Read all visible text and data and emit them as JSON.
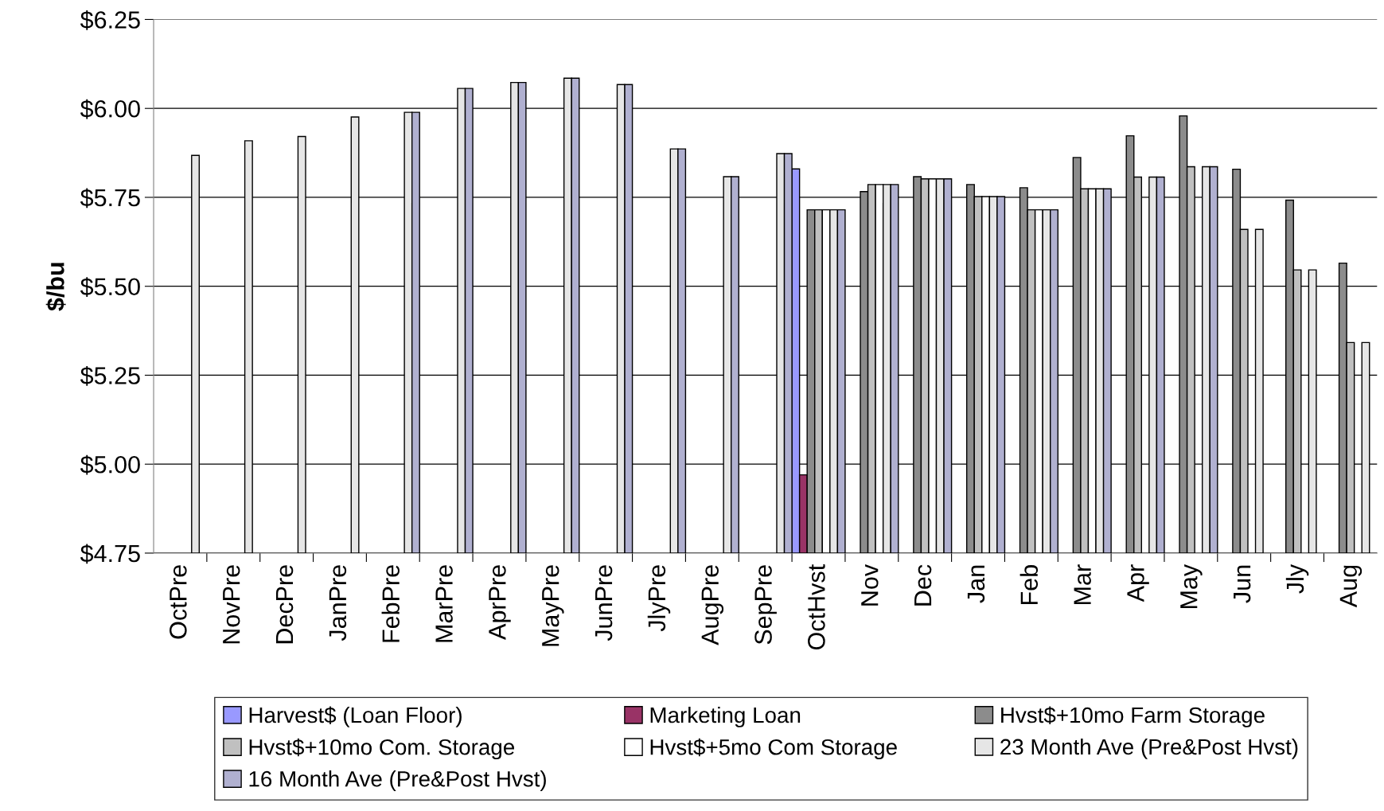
{
  "chart_data": {
    "type": "bar",
    "ylabel": "$/bu",
    "categories": [
      "OctPre",
      "NovPre",
      "DecPre",
      "JanPre",
      "FebPre",
      "MarPre",
      "AprPre",
      "MayPre",
      "JunPre",
      "JlyPre",
      "AugPre",
      "SepPre",
      "OctHvst",
      "Nov",
      "Dec",
      "Jan",
      "Feb",
      "Mar",
      "Apr",
      "May",
      "Jun",
      "Jly",
      "Aug"
    ],
    "series": [
      {
        "name": "Harvest$ (Loan Floor)",
        "color": "#9999ff",
        "values": [
          null,
          null,
          null,
          null,
          null,
          null,
          null,
          null,
          null,
          null,
          null,
          null,
          5.83,
          null,
          null,
          null,
          null,
          null,
          null,
          null,
          null,
          null,
          null
        ]
      },
      {
        "name": "Marketing Loan",
        "color": "#993366",
        "values": [
          null,
          null,
          null,
          null,
          null,
          null,
          null,
          null,
          null,
          null,
          null,
          null,
          4.97,
          null,
          null,
          null,
          null,
          null,
          null,
          null,
          null,
          null,
          null
        ]
      },
      {
        "name": "Hvst$+10mo Farm Storage",
        "color": "#8c8c8c",
        "values": [
          null,
          null,
          null,
          null,
          null,
          null,
          null,
          null,
          null,
          null,
          null,
          null,
          5.715,
          5.766,
          5.808,
          5.786,
          5.777,
          5.862,
          5.923,
          5.979,
          5.829,
          5.742,
          5.565
        ]
      },
      {
        "name": "Hvst$+10mo Com. Storage",
        "color": "#c0c0c0",
        "values": [
          null,
          null,
          null,
          null,
          null,
          null,
          null,
          null,
          null,
          null,
          null,
          null,
          5.715,
          5.786,
          5.802,
          5.752,
          5.715,
          5.774,
          5.807,
          5.836,
          5.66,
          5.546,
          5.342
        ]
      },
      {
        "name": "Hvst$+5mo Com Storage",
        "color": "#ffffff",
        "values": [
          null,
          null,
          null,
          null,
          null,
          null,
          null,
          null,
          null,
          null,
          null,
          null,
          5.715,
          5.786,
          5.802,
          5.752,
          5.715,
          5.774,
          null,
          null,
          null,
          null,
          null
        ]
      },
      {
        "name": "23 Month Ave (Pre&Post Hvst)",
        "color": "#e6e6e6",
        "values": [
          5.868,
          5.909,
          5.921,
          5.976,
          5.989,
          6.056,
          6.073,
          6.085,
          6.067,
          5.886,
          5.808,
          5.873,
          5.715,
          5.786,
          5.802,
          5.752,
          5.715,
          5.774,
          5.807,
          5.836,
          5.66,
          5.546,
          5.342
        ]
      },
      {
        "name": "16 Month Ave (Pre&Post Hvst)",
        "color": "#b0b0d0",
        "values": [
          null,
          null,
          null,
          null,
          5.989,
          6.056,
          6.073,
          6.085,
          6.067,
          5.886,
          5.808,
          5.873,
          5.715,
          5.786,
          5.802,
          5.752,
          5.715,
          5.774,
          5.807,
          5.836,
          null,
          null,
          null
        ]
      }
    ],
    "ylim": [
      4.75,
      6.25
    ],
    "yticks": [
      {
        "value": 4.75,
        "label": "$4.75"
      },
      {
        "value": 5.0,
        "label": "$5.00"
      },
      {
        "value": 5.25,
        "label": "$5.25"
      },
      {
        "value": 5.5,
        "label": "$5.50"
      },
      {
        "value": 5.75,
        "label": "$5.75"
      },
      {
        "value": 6.0,
        "label": "$6.00"
      },
      {
        "value": 6.25,
        "label": "$6.25"
      }
    ],
    "grid": "y",
    "legend": "bottom"
  }
}
